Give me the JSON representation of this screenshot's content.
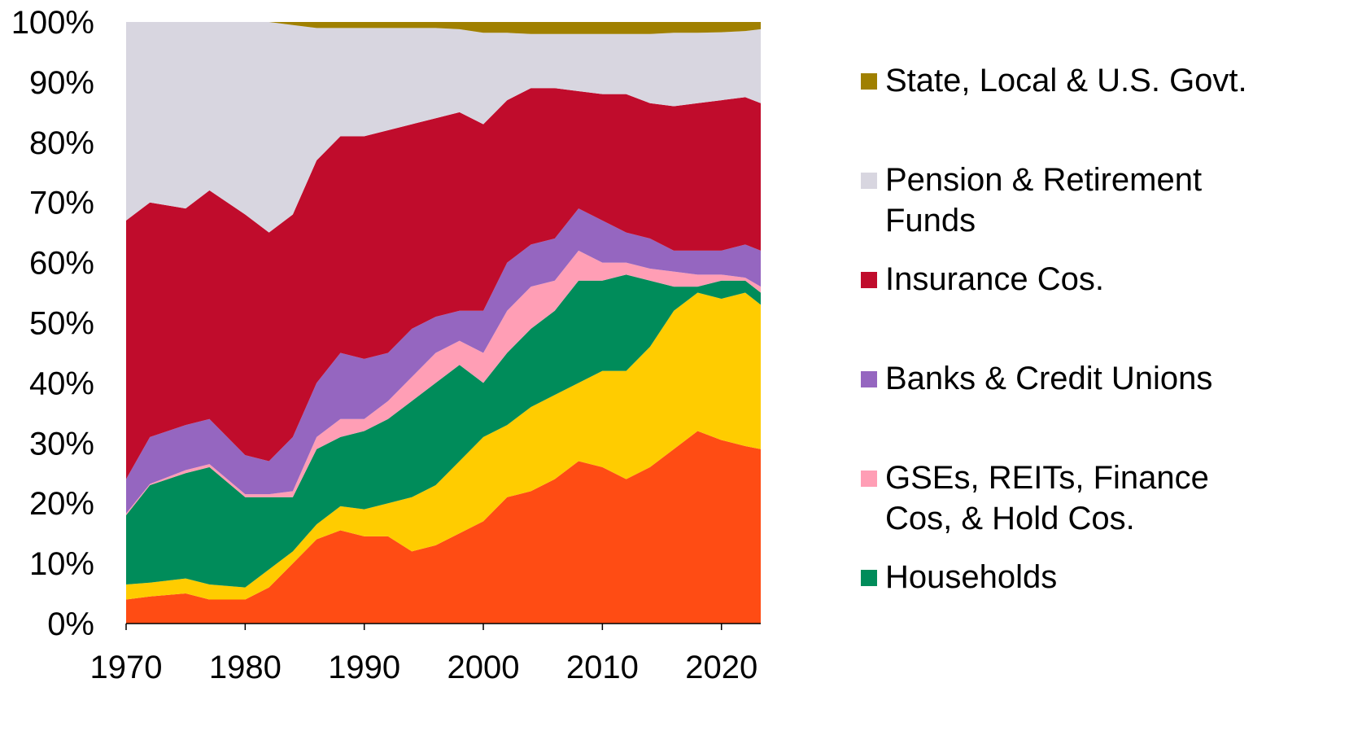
{
  "chart_data": {
    "type": "area",
    "stacked": true,
    "normalized_percent": true,
    "x": [
      1970,
      1972,
      1975,
      1977,
      1980,
      1982,
      1984,
      1986,
      1988,
      1990,
      1992,
      1994,
      1996,
      1998,
      2000,
      2002,
      2004,
      2006,
      2008,
      2010,
      2012,
      2014,
      2016,
      2018,
      2020,
      2022,
      2023
    ],
    "xlim": [
      1970,
      2023.3
    ],
    "ylim": [
      0,
      100
    ],
    "x_ticks": [
      "1970",
      "1980",
      "1990",
      "2000",
      "2010",
      "2020"
    ],
    "x_tick_values": [
      1970,
      1980,
      1990,
      2000,
      2010,
      2020
    ],
    "y_ticks": [
      "0%",
      "10%",
      "20%",
      "30%",
      "40%",
      "50%",
      "60%",
      "70%",
      "80%",
      "90%",
      "100%"
    ],
    "y_tick_values": [
      0,
      10,
      20,
      30,
      40,
      50,
      60,
      70,
      80,
      90,
      100
    ],
    "grid": false,
    "legend_placement": "right",
    "series": [
      {
        "color": "#FF4C14",
        "values": [
          4,
          4.5,
          5,
          4,
          4,
          6,
          10,
          14,
          15.5,
          14.5,
          14.5,
          12,
          13,
          15,
          17,
          21,
          22,
          24,
          27,
          26,
          24,
          26,
          29,
          32,
          30.5,
          29.5,
          29
        ]
      },
      {
        "color": "#FFCC00",
        "values": [
          2.5,
          2.3,
          2.5,
          2.5,
          2,
          3,
          2,
          2.5,
          4,
          4.5,
          5.5,
          9,
          10,
          12,
          14,
          12,
          14,
          14,
          13,
          16,
          18,
          20,
          23,
          23,
          23.5,
          25.5,
          24
        ]
      },
      {
        "name": "Households",
        "color": "#008C5A",
        "values": [
          11.5,
          16.2,
          17.5,
          19.5,
          15,
          12,
          9,
          12.5,
          11.5,
          13,
          14,
          16,
          17,
          16,
          9,
          12,
          13,
          14,
          17,
          15,
          16,
          11,
          4,
          1,
          3,
          2,
          2
        ]
      },
      {
        "name": "GSEs, REITs, Finance Cos, & Hold Cos.",
        "color": "#FF9EB5",
        "values": [
          0.3,
          0.2,
          0.5,
          0.5,
          0.5,
          0.5,
          1,
          2,
          3,
          2,
          3,
          4,
          5,
          4,
          5,
          7,
          7,
          5,
          5,
          3,
          2,
          2,
          2.5,
          2,
          1,
          0.5,
          1
        ]
      },
      {
        "name": "Banks & Credit Unions",
        "color": "#9566C0",
        "values": [
          5.7,
          7.8,
          7.5,
          7.5,
          6.5,
          5.5,
          9,
          9,
          11,
          10,
          8,
          8,
          6,
          5,
          7,
          8,
          7,
          7,
          7,
          7,
          5,
          5,
          3.5,
          4,
          4,
          5.5,
          6
        ]
      },
      {
        "name": "Insurance Cos.",
        "color": "#C00C2C",
        "values": [
          43,
          39,
          36,
          38,
          40,
          38,
          37,
          37,
          36,
          37,
          37,
          34,
          33,
          33,
          31,
          27,
          26,
          25,
          19.5,
          21,
          23,
          22.5,
          24,
          24.5,
          25,
          24.5,
          24.5
        ]
      },
      {
        "name": "Pension & Retirement Funds",
        "color": "#D8D6E0",
        "values": [
          33,
          30,
          31,
          28,
          32,
          35,
          31.5,
          22,
          18,
          18,
          17,
          16,
          15,
          13.8,
          15.2,
          11.2,
          9,
          9,
          9.5,
          10,
          10,
          11.5,
          12.2,
          11.7,
          11.3,
          11,
          12.3
        ]
      },
      {
        "name": "State, Local & U.S. Govt.",
        "color": "#A08000",
        "values": [
          0,
          0,
          0,
          0,
          0,
          0,
          0.5,
          1,
          1,
          1,
          1,
          1,
          1,
          1.2,
          1.8,
          1.8,
          2,
          2,
          2,
          2,
          2,
          2,
          1.8,
          1.8,
          1.7,
          1.5,
          1.2
        ]
      }
    ],
    "legend": [
      {
        "label": "State, Local & U.S. Govt.",
        "color": "#A08000"
      },
      {
        "label": "Pension & Retirement Funds",
        "color": "#D8D6E0"
      },
      {
        "label": "Insurance Cos.",
        "color": "#C00C2C"
      },
      {
        "label": "Banks & Credit Unions",
        "color": "#9566C0"
      },
      {
        "label": "GSEs, REITs, Finance Cos, & Hold Cos.",
        "color": "#FF9EB5"
      },
      {
        "label": "Households",
        "color": "#008C5A"
      }
    ]
  }
}
